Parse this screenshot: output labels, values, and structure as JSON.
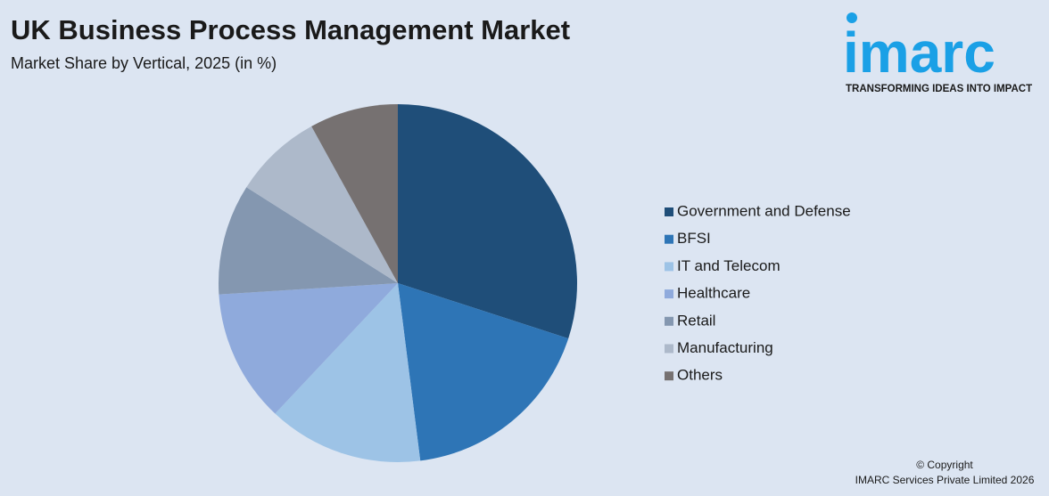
{
  "chart_data": {
    "type": "pie",
    "title": "UK Business Process Management Market",
    "subtitle": "Market Share by Vertical, 2025 (in %)",
    "categories": [
      "Government and Defense",
      "BFSI",
      "IT and Telecom",
      "Healthcare",
      "Retail",
      "Manufacturing",
      "Others"
    ],
    "values": [
      30,
      18,
      14,
      12,
      10,
      8,
      8
    ],
    "colors": [
      "#1f4e79",
      "#2e75b6",
      "#9dc3e6",
      "#8faadc",
      "#8497b0",
      "#adb9ca",
      "#767171"
    ],
    "legend": "right"
  },
  "logo": {
    "name": "imarc",
    "tagline": "TRANSFORMING IDEAS INTO IMPACT"
  },
  "footer": {
    "copyright": "© Copyright",
    "company": "IMARC Services Private Limited 2026"
  }
}
